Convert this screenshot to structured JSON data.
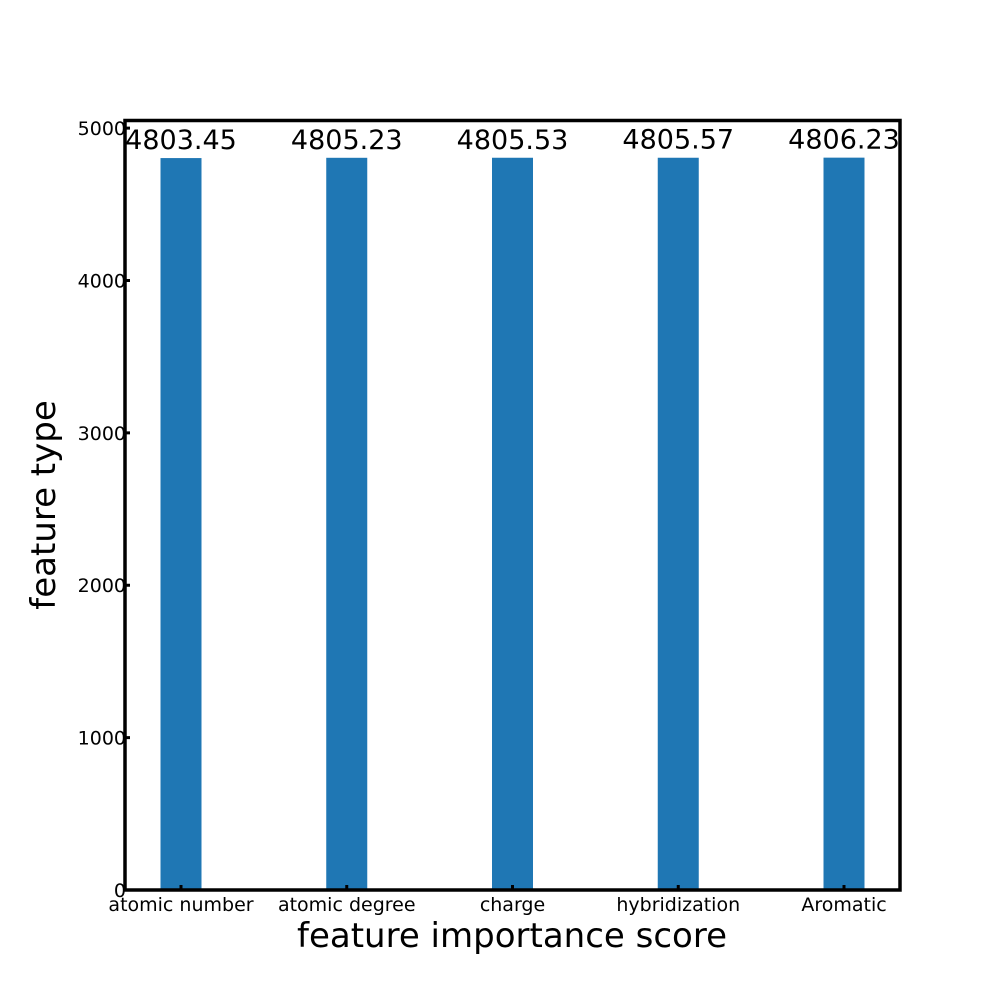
{
  "chart_data": {
    "type": "bar",
    "title": "",
    "xlabel": "feature importance score",
    "ylabel": "feature type",
    "categories": [
      "atomic number",
      "atomic degree",
      "charge",
      "hybridization",
      "Aromatic"
    ],
    "values": [
      4803.45,
      4805.23,
      4805.53,
      4805.57,
      4806.23
    ],
    "data_labels": [
      "4803.45",
      "4805.23",
      "4805.53",
      "4805.57",
      "4806.23"
    ],
    "ylim": [
      0,
      5050
    ],
    "yticks": [
      0,
      1000,
      2000,
      3000,
      4000,
      5000
    ],
    "ytick_labels": [
      "0",
      "1000",
      "2000",
      "3000",
      "4000",
      "5000"
    ],
    "grid": false,
    "legend": "none"
  },
  "colors": {
    "bar": "#1f77b4",
    "axis": "#000000",
    "background": "#ffffff"
  }
}
